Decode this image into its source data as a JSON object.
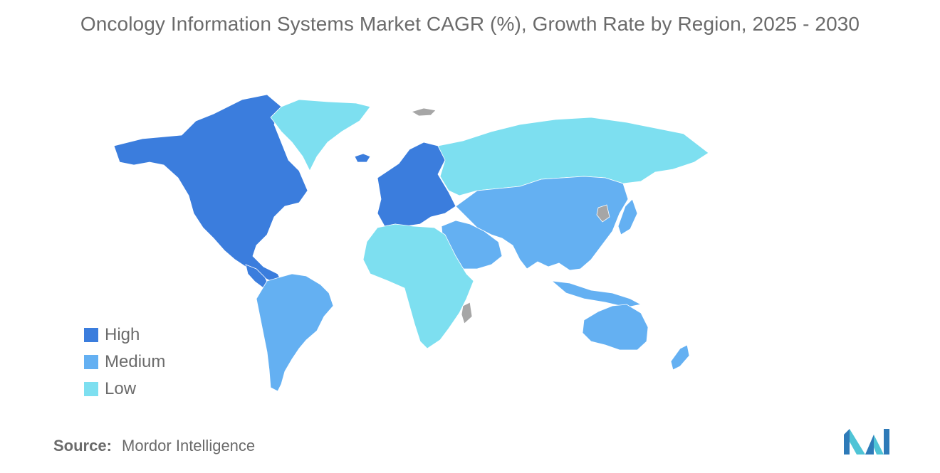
{
  "title": "Oncology Information Systems Market CAGR (%), Growth Rate by Region, 2025 - 2030",
  "colors": {
    "high": "#3b7ddd",
    "medium": "#64b0f2",
    "low": "#7ddff0",
    "no_data": "#a6a6a6",
    "logo_dark": "#2e7ab8",
    "logo_light": "#4fc4d6"
  },
  "legend": {
    "items": [
      {
        "key": "high",
        "label": "High"
      },
      {
        "key": "medium",
        "label": "Medium"
      },
      {
        "key": "low",
        "label": "Low"
      }
    ]
  },
  "regions": {
    "north_america": "high",
    "europe": "high",
    "greenland": "low",
    "russia": "low",
    "africa": "low",
    "latin_america": "medium",
    "asia_pacific": "medium",
    "middle_east": "medium",
    "australia": "medium"
  },
  "source": {
    "label": "Source:",
    "value": "Mordor Intelligence"
  }
}
